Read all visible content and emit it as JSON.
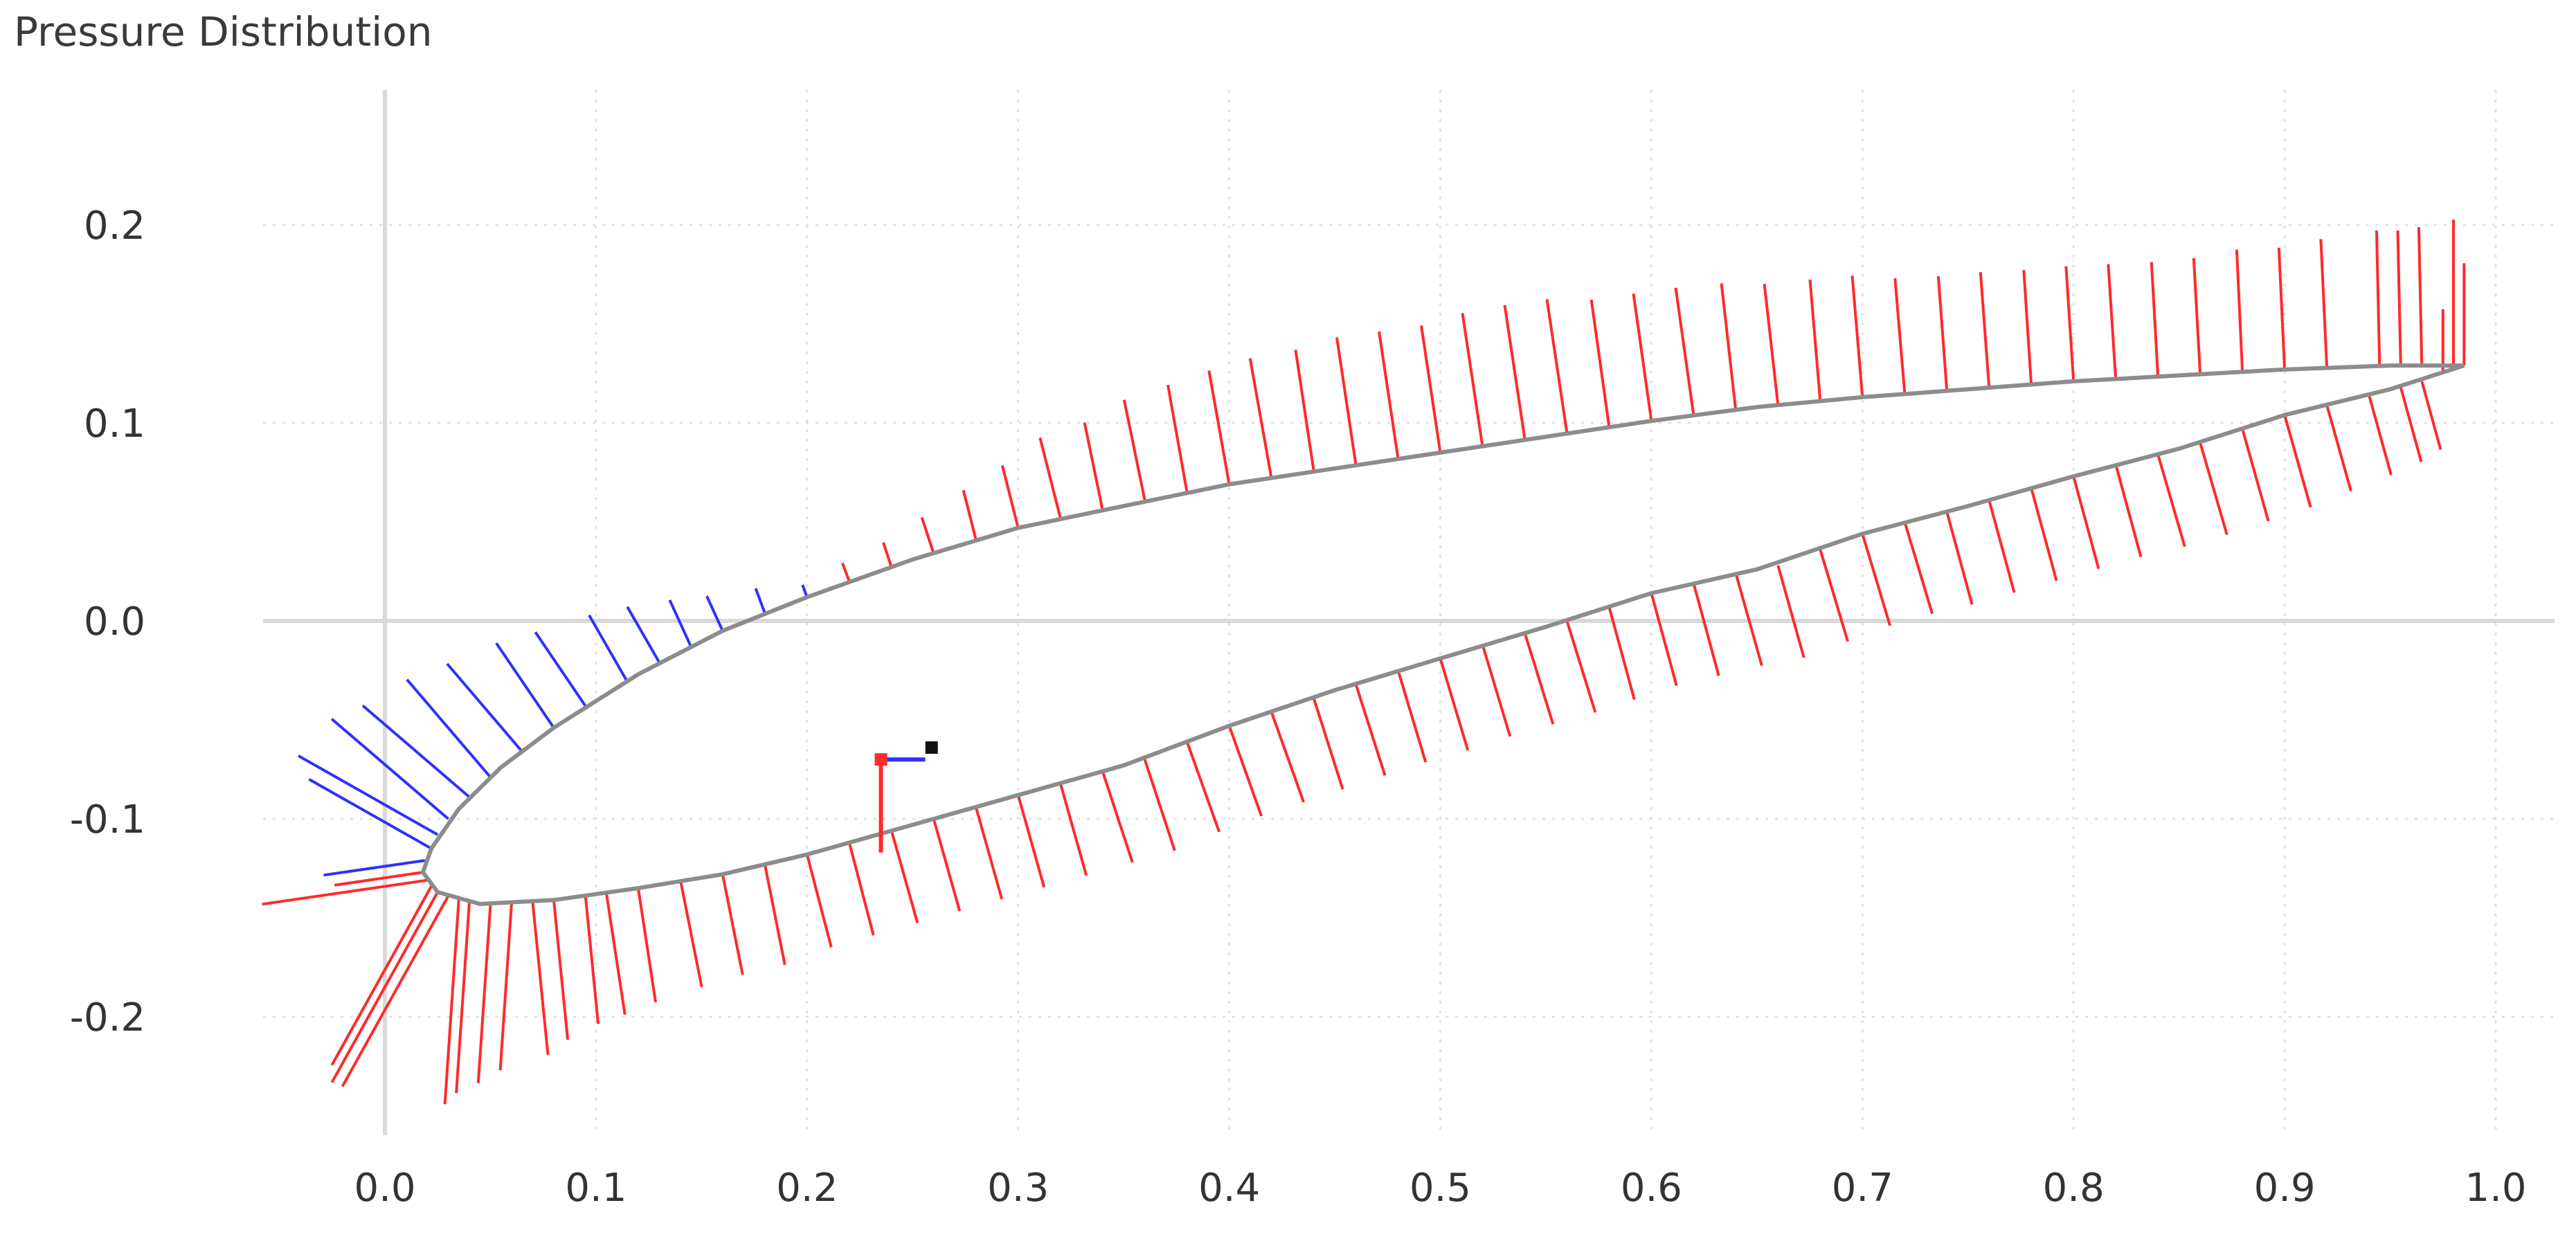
{
  "panel": {
    "title": "Pressure Distribution"
  },
  "colors": {
    "positive": "#ff2a2a",
    "negative": "#3030ff",
    "outline": "#8c8c8c",
    "axis": "#d9d9d9",
    "grid": "#e2e2e2"
  },
  "chart_data": {
    "type": "line",
    "title": "",
    "xlabel": "",
    "ylabel": "",
    "xlim": [
      -0.06,
      1.03
    ],
    "ylim": [
      -0.26,
      0.26
    ],
    "grid": true,
    "x_ticks": [
      "0.0",
      "0.1",
      "0.2",
      "0.3",
      "0.4",
      "0.5",
      "0.6",
      "0.7",
      "0.8",
      "0.9",
      "1.0"
    ],
    "y_ticks": [
      "0.2",
      "0.1",
      "0.0",
      "-0.1",
      "-0.2"
    ],
    "series": [
      {
        "name": "",
        "values": [
          [
            0.985,
            0.129
          ],
          [
            0.95,
            0.129
          ],
          [
            0.9,
            0.127
          ],
          [
            0.85,
            0.124
          ],
          [
            0.8,
            0.121
          ],
          [
            0.75,
            0.117
          ],
          [
            0.7,
            0.113
          ],
          [
            0.65,
            0.108
          ],
          [
            0.6,
            0.101
          ],
          [
            0.55,
            0.093
          ],
          [
            0.5,
            0.085
          ],
          [
            0.45,
            0.077
          ],
          [
            0.4,
            0.069
          ],
          [
            0.35,
            0.058
          ],
          [
            0.3,
            0.047
          ],
          [
            0.25,
            0.031
          ],
          [
            0.2,
            0.012
          ],
          [
            0.16,
            -0.005
          ],
          [
            0.12,
            -0.027
          ],
          [
            0.08,
            -0.054
          ],
          [
            0.055,
            -0.074
          ],
          [
            0.035,
            -0.095
          ],
          [
            0.022,
            -0.115
          ],
          [
            0.018,
            -0.127
          ],
          [
            0.025,
            -0.137
          ],
          [
            0.045,
            -0.143
          ],
          [
            0.08,
            -0.141
          ],
          [
            0.12,
            -0.135
          ],
          [
            0.16,
            -0.128
          ],
          [
            0.2,
            -0.118
          ],
          [
            0.25,
            -0.103
          ],
          [
            0.3,
            -0.088
          ],
          [
            0.35,
            -0.073
          ],
          [
            0.4,
            -0.053
          ],
          [
            0.45,
            -0.035
          ],
          [
            0.5,
            -0.019
          ],
          [
            0.55,
            -0.003
          ],
          [
            0.6,
            0.014
          ],
          [
            0.65,
            0.026
          ],
          [
            0.7,
            0.044
          ],
          [
            0.75,
            0.058
          ],
          [
            0.8,
            0.073
          ],
          [
            0.85,
            0.087
          ],
          [
            0.9,
            0.104
          ],
          [
            0.95,
            0.117
          ],
          [
            0.985,
            0.129
          ]
        ]
      }
    ],
    "pressure_vectors": [
      [
        0.98,
        0.129,
        0.134
      ],
      [
        0.965,
        0.129,
        0.127
      ],
      [
        0.955,
        0.129,
        0.124
      ],
      [
        0.945,
        0.129,
        0.124
      ],
      [
        0.92,
        0.128,
        0.118
      ],
      [
        0.9,
        0.127,
        0.112
      ],
      [
        0.88,
        0.126,
        0.112
      ],
      [
        0.86,
        0.125,
        0.106
      ],
      [
        0.84,
        0.123,
        0.106
      ],
      [
        0.82,
        0.122,
        0.106
      ],
      [
        0.8,
        0.121,
        0.106
      ],
      [
        0.78,
        0.119,
        0.106
      ],
      [
        0.76,
        0.118,
        0.106
      ],
      [
        0.74,
        0.116,
        0.106
      ],
      [
        0.72,
        0.115,
        0.106
      ],
      [
        0.7,
        0.113,
        0.112
      ],
      [
        0.68,
        0.111,
        0.112
      ],
      [
        0.66,
        0.109,
        0.112
      ],
      [
        0.64,
        0.106,
        0.118
      ],
      [
        0.62,
        0.104,
        0.118
      ],
      [
        0.6,
        0.101,
        0.118
      ],
      [
        0.58,
        0.098,
        0.118
      ],
      [
        0.56,
        0.095,
        0.124
      ],
      [
        0.54,
        0.092,
        0.124
      ],
      [
        0.52,
        0.088,
        0.124
      ],
      [
        0.5,
        0.085,
        0.118
      ],
      [
        0.48,
        0.082,
        0.118
      ],
      [
        0.46,
        0.079,
        0.118
      ],
      [
        0.44,
        0.076,
        0.112
      ],
      [
        0.42,
        0.072,
        0.112
      ],
      [
        0.4,
        0.069,
        0.106
      ],
      [
        0.38,
        0.065,
        0.1
      ],
      [
        0.36,
        0.061,
        0.094
      ],
      [
        0.34,
        0.056,
        0.082
      ],
      [
        0.32,
        0.052,
        0.076
      ],
      [
        0.3,
        0.047,
        0.059
      ],
      [
        0.28,
        0.041,
        0.047
      ],
      [
        0.26,
        0.034,
        0.035
      ],
      [
        0.24,
        0.027,
        0.024
      ],
      [
        0.22,
        0.02,
        0.018
      ],
      [
        0.2,
        0.012,
        -0.012
      ],
      [
        0.18,
        0.004,
        -0.024
      ],
      [
        0.16,
        -0.005,
        -0.035
      ],
      [
        0.145,
        -0.013,
        -0.047
      ],
      [
        0.13,
        -0.021,
        -0.059
      ],
      [
        0.115,
        -0.031,
        -0.071
      ],
      [
        0.095,
        -0.043,
        -0.082
      ],
      [
        0.08,
        -0.054,
        -0.094
      ],
      [
        0.065,
        -0.066,
        -0.106
      ],
      [
        0.05,
        -0.079,
        -0.118
      ],
      [
        0.04,
        -0.089,
        -0.129
      ],
      [
        0.03,
        -0.1,
        -0.141
      ],
      [
        0.025,
        -0.108,
        -0.147
      ],
      [
        0.022,
        -0.115,
        -0.129
      ],
      [
        0.019,
        -0.121,
        -0.094
      ],
      [
        0.018,
        -0.127,
        0.082
      ],
      [
        0.02,
        -0.131,
        0.153
      ],
      [
        0.022,
        -0.134,
        0.188
      ],
      [
        0.025,
        -0.137,
        0.2
      ],
      [
        0.03,
        -0.139,
        0.2
      ],
      [
        0.035,
        -0.141,
        0.188
      ],
      [
        0.04,
        -0.142,
        0.176
      ],
      [
        0.05,
        -0.143,
        0.165
      ],
      [
        0.06,
        -0.143,
        0.153
      ],
      [
        0.07,
        -0.142,
        0.141
      ],
      [
        0.08,
        -0.141,
        0.129
      ],
      [
        0.095,
        -0.139,
        0.118
      ],
      [
        0.105,
        -0.138,
        0.112
      ],
      [
        0.12,
        -0.135,
        0.106
      ],
      [
        0.14,
        -0.131,
        0.1
      ],
      [
        0.16,
        -0.128,
        0.094
      ],
      [
        0.18,
        -0.123,
        0.094
      ],
      [
        0.2,
        -0.118,
        0.088
      ],
      [
        0.22,
        -0.112,
        0.088
      ],
      [
        0.24,
        -0.106,
        0.088
      ],
      [
        0.26,
        -0.1,
        0.088
      ],
      [
        0.28,
        -0.094,
        0.088
      ],
      [
        0.3,
        -0.088,
        0.088
      ],
      [
        0.32,
        -0.082,
        0.088
      ],
      [
        0.34,
        -0.076,
        0.088
      ],
      [
        0.36,
        -0.07,
        0.088
      ],
      [
        0.38,
        -0.061,
        0.088
      ],
      [
        0.4,
        -0.053,
        0.088
      ],
      [
        0.42,
        -0.046,
        0.088
      ],
      [
        0.44,
        -0.039,
        0.088
      ],
      [
        0.46,
        -0.032,
        0.088
      ],
      [
        0.48,
        -0.025,
        0.088
      ],
      [
        0.5,
        -0.019,
        0.088
      ],
      [
        0.52,
        -0.012,
        0.088
      ],
      [
        0.54,
        -0.006,
        0.088
      ],
      [
        0.56,
        0.0,
        0.088
      ],
      [
        0.58,
        0.007,
        0.088
      ],
      [
        0.6,
        0.014,
        0.088
      ],
      [
        0.62,
        0.019,
        0.088
      ],
      [
        0.64,
        0.024,
        0.088
      ],
      [
        0.66,
        0.028,
        0.088
      ],
      [
        0.68,
        0.036,
        0.088
      ],
      [
        0.7,
        0.044,
        0.088
      ],
      [
        0.72,
        0.05,
        0.088
      ],
      [
        0.74,
        0.055,
        0.088
      ],
      [
        0.76,
        0.061,
        0.088
      ],
      [
        0.78,
        0.067,
        0.088
      ],
      [
        0.8,
        0.073,
        0.088
      ],
      [
        0.82,
        0.079,
        0.088
      ],
      [
        0.84,
        0.084,
        0.088
      ],
      [
        0.86,
        0.09,
        0.088
      ],
      [
        0.88,
        0.097,
        0.088
      ],
      [
        0.9,
        0.104,
        0.088
      ],
      [
        0.92,
        0.109,
        0.082
      ],
      [
        0.94,
        0.114,
        0.076
      ],
      [
        0.955,
        0.118,
        0.071
      ],
      [
        0.965,
        0.121,
        0.065
      ],
      [
        0.975,
        0.125,
        0.059
      ],
      [
        0.985,
        0.129,
        0.094
      ]
    ],
    "force_markers": {
      "center_of_pressure": [
        0.235,
        -0.07
      ],
      "reference_point": [
        0.259,
        -0.064
      ],
      "lift_vector": [
        0.0,
        -0.047
      ],
      "drag_vector": [
        0.021,
        0.0
      ]
    }
  }
}
